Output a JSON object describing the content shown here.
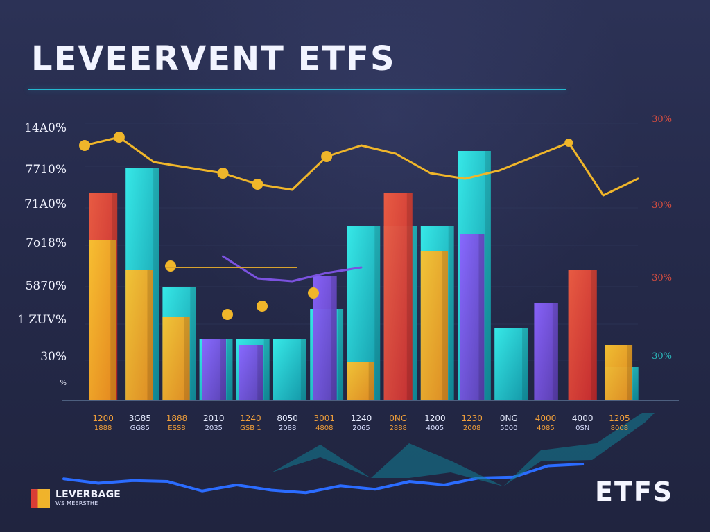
{
  "title": "LEVEERVENT ETFS",
  "brand_label": "ETFS",
  "legend": {
    "main": "LEVERBAGE",
    "sub": "WS MEERSTHE",
    "swatch_colors": [
      "#d93d35",
      "#f0b32b"
    ]
  },
  "colors": {
    "background": "#252a4a",
    "title": "#f2f4ff",
    "rule": "#25b8d0",
    "cyan": "#1ed0cf",
    "teal": "#18a6b2",
    "orange": "#f0b32b",
    "red": "#e24833",
    "purple": "#7b52df",
    "gold": "#f0b62a",
    "blue": "#2b6cff"
  },
  "chart_data": {
    "type": "bar",
    "title": "LEVEERVENT ETFS",
    "xlabel": "",
    "ylabel": "",
    "ylim": [
      0,
      100
    ],
    "grid": true,
    "legend_position": "bottom-left",
    "left_ticks": [
      "14A0%",
      "7710%",
      "71A0%",
      "7o18%",
      "5870%",
      "1 ZUV%",
      "30%",
      "%"
    ],
    "right_ticks": [
      "30%",
      "30%",
      "30%",
      "30%"
    ],
    "right_tick_colors": [
      "#d84d3f",
      "#d84d3f",
      "#d84d3f",
      "#2ab8ba"
    ],
    "categories": [
      "1200",
      "3G85",
      "1888",
      "2010",
      "1240",
      "8050",
      "3001",
      "1240",
      "0NG",
      "1200",
      "1230",
      "0NG",
      "4000",
      "4000",
      "1205"
    ],
    "subcategories": [
      "1888",
      "GG85",
      "ESS8",
      "2035",
      "GSB 1",
      "2088",
      "4808",
      "2065",
      "2888",
      "4005",
      "2008",
      "5000",
      "4085",
      "0SN",
      "8008"
    ],
    "series": [
      {
        "name": "Cyan",
        "values": [
          0,
          84,
          41,
          22,
          22,
          22,
          33,
          63,
          63,
          63,
          90,
          26,
          0,
          0,
          12
        ]
      },
      {
        "name": "Red",
        "values": [
          75,
          0,
          0,
          0,
          0,
          0,
          0,
          0,
          75,
          0,
          0,
          0,
          0,
          47,
          0
        ]
      },
      {
        "name": "Orange",
        "values": [
          58,
          47,
          30,
          0,
          0,
          0,
          0,
          14,
          0,
          54,
          0,
          0,
          0,
          0,
          20
        ]
      },
      {
        "name": "Purple",
        "values": [
          0,
          0,
          0,
          22,
          20,
          0,
          45,
          0,
          0,
          0,
          60,
          0,
          35,
          0,
          0
        ]
      }
    ],
    "line_series": [
      {
        "name": "Gold",
        "x": [
          0,
          1,
          2,
          3,
          4,
          5,
          6,
          7,
          8,
          9,
          10,
          11,
          12,
          13,
          14,
          15,
          16
        ],
        "values": [
          92,
          95,
          86,
          84,
          82,
          78,
          76,
          88,
          92,
          89,
          82,
          80,
          83,
          88,
          93,
          74,
          80
        ]
      },
      {
        "name": "Purple",
        "x": [
          4,
          5,
          6,
          7,
          8
        ],
        "values": [
          52,
          44,
          43,
          46,
          48
        ]
      },
      {
        "name": "Blue",
        "x": [
          0,
          1,
          2,
          3,
          4,
          5,
          6,
          7,
          8,
          9,
          10,
          11,
          12,
          13,
          14,
          15
        ],
        "values": [
          23,
          18,
          21,
          20,
          9,
          16,
          10,
          7,
          15,
          11,
          20,
          16,
          24,
          25,
          38,
          40
        ]
      }
    ]
  }
}
